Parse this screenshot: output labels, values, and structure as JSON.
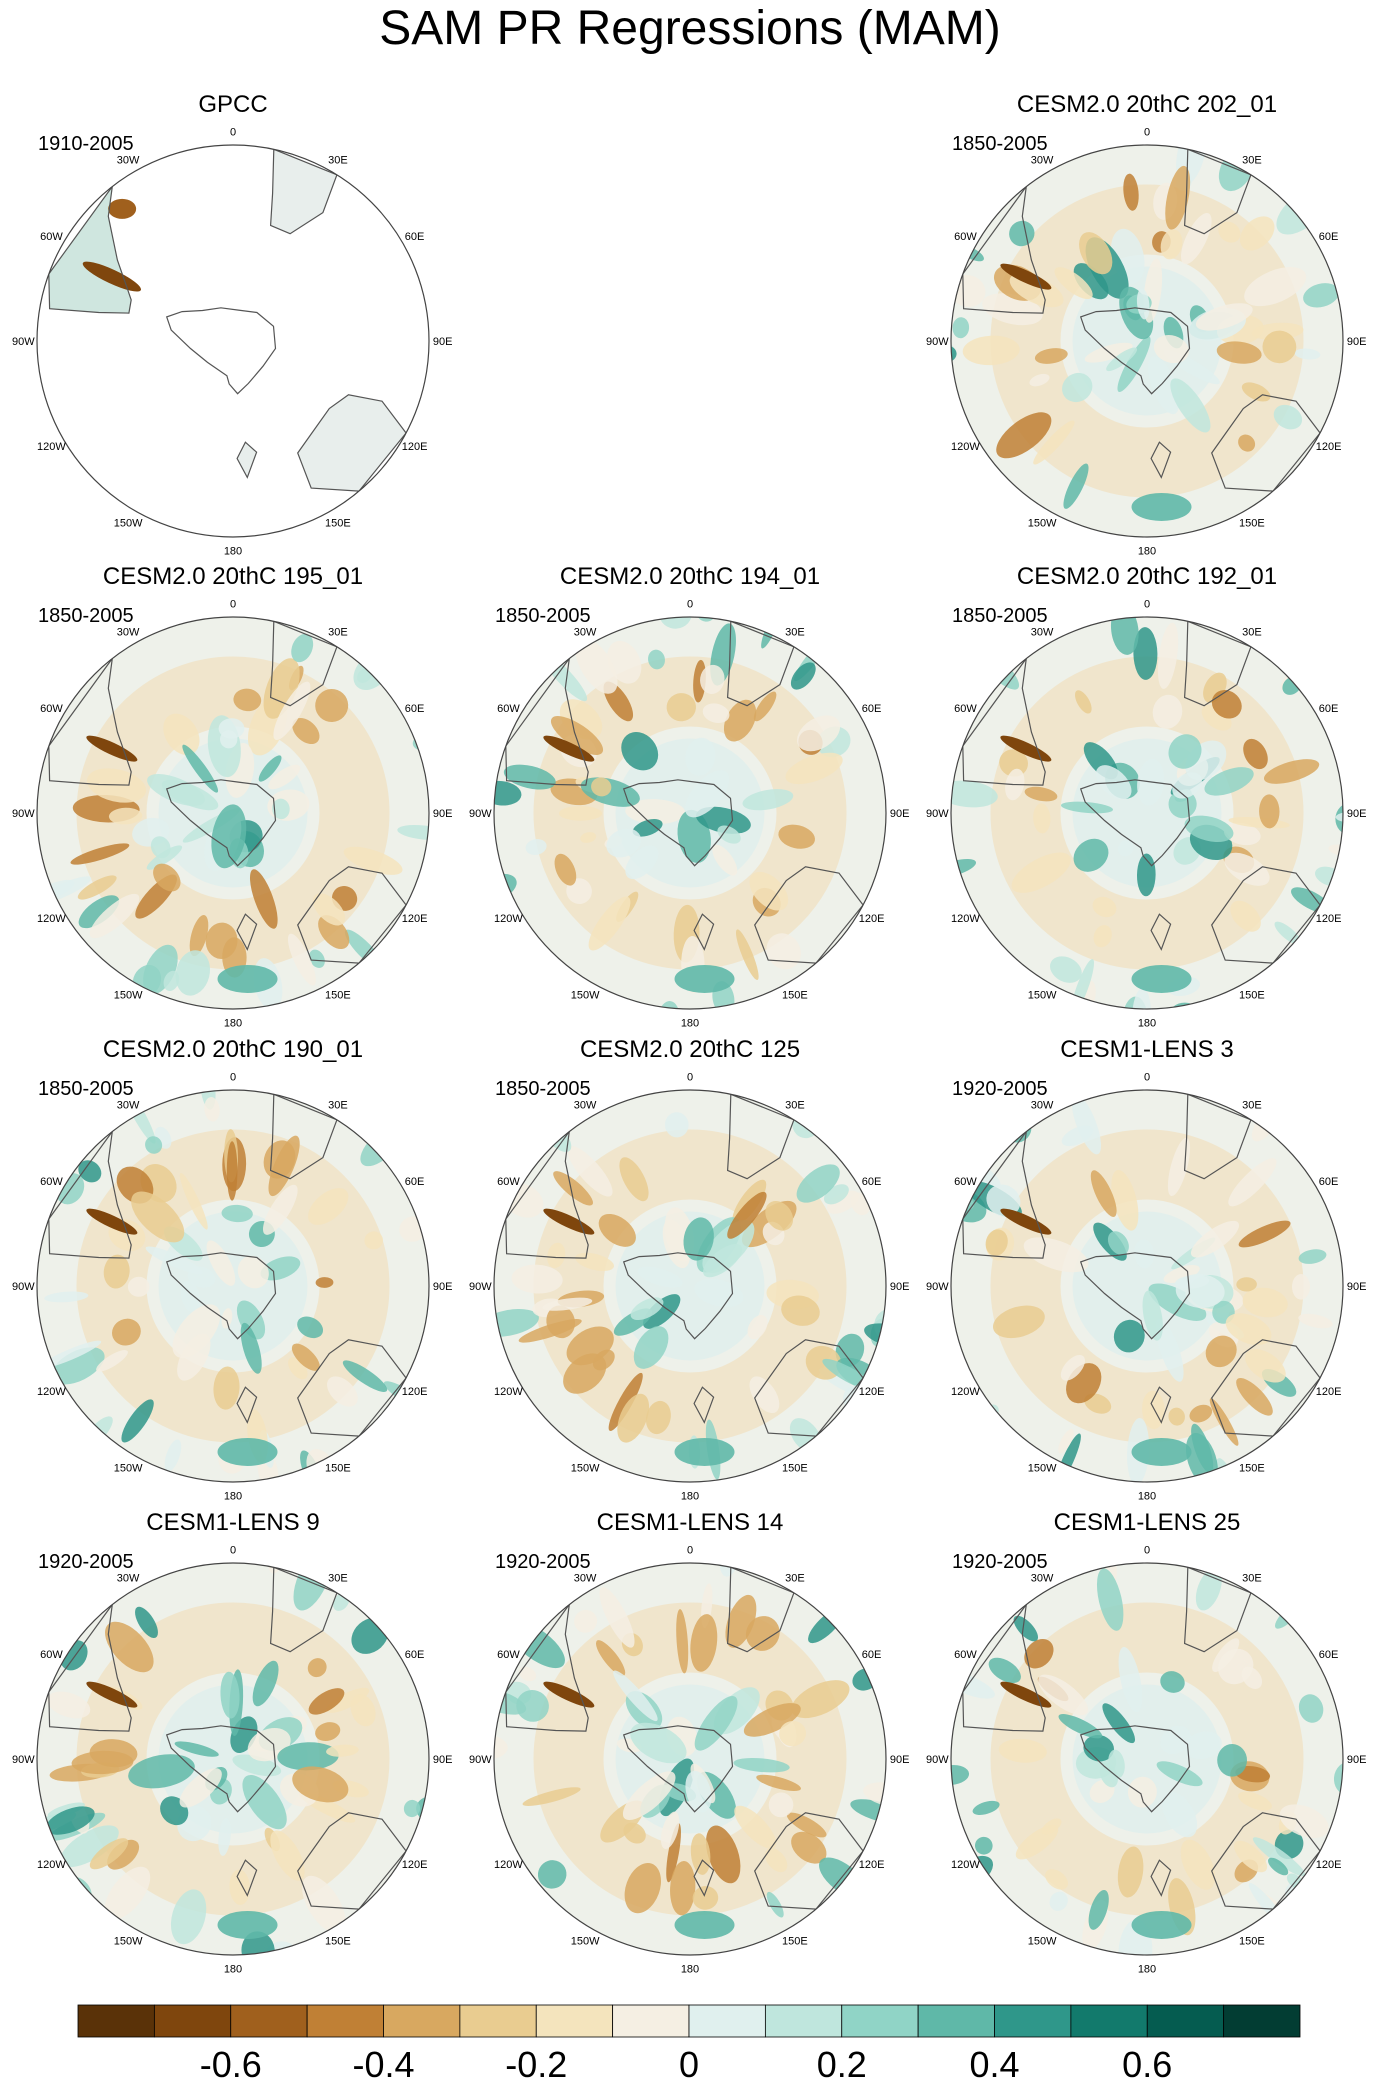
{
  "title": "SAM PR Regressions (MAM)",
  "longitude_labels": [
    "0",
    "30E",
    "60E",
    "90E",
    "120E",
    "150E",
    "180",
    "150W",
    "120W",
    "90W",
    "60W",
    "30W"
  ],
  "panels": [
    {
      "id": "gpcc",
      "row": 0,
      "col": 0,
      "title": "GPCC",
      "period": "1910-2005",
      "observed_land_only": true,
      "seed": 3
    },
    {
      "id": "cesm2-202",
      "row": 0,
      "col": 2,
      "title": "CESM2.0 20thC 202_01",
      "period": "1850-2005",
      "observed_land_only": false,
      "seed": 11
    },
    {
      "id": "cesm2-195",
      "row": 1,
      "col": 0,
      "title": "CESM2.0 20thC 195_01",
      "period": "1850-2005",
      "observed_land_only": false,
      "seed": 23
    },
    {
      "id": "cesm2-194",
      "row": 1,
      "col": 1,
      "title": "CESM2.0 20thC 194_01",
      "period": "1850-2005",
      "observed_land_only": false,
      "seed": 37
    },
    {
      "id": "cesm2-192",
      "row": 1,
      "col": 2,
      "title": "CESM2.0 20thC 192_01",
      "period": "1850-2005",
      "observed_land_only": false,
      "seed": 41
    },
    {
      "id": "cesm2-190",
      "row": 2,
      "col": 0,
      "title": "CESM2.0 20thC 190_01",
      "period": "1850-2005",
      "observed_land_only": false,
      "seed": 53
    },
    {
      "id": "cesm2-125",
      "row": 2,
      "col": 1,
      "title": "CESM2.0 20thC 125",
      "period": "1850-2005",
      "observed_land_only": false,
      "seed": 67
    },
    {
      "id": "lens-3",
      "row": 2,
      "col": 2,
      "title": "CESM1-LENS 3",
      "period": "1920-2005",
      "observed_land_only": false,
      "seed": 71
    },
    {
      "id": "lens-9",
      "row": 3,
      "col": 0,
      "title": "CESM1-LENS 9",
      "period": "1920-2005",
      "observed_land_only": false,
      "seed": 83
    },
    {
      "id": "lens-14",
      "row": 3,
      "col": 1,
      "title": "CESM1-LENS 14",
      "period": "1920-2005",
      "observed_land_only": false,
      "seed": 97
    },
    {
      "id": "lens-25",
      "row": 3,
      "col": 2,
      "title": "CESM1-LENS 25",
      "period": "1920-2005",
      "observed_land_only": false,
      "seed": 101
    }
  ],
  "colorbar": {
    "colors": [
      "#5a3208",
      "#7f460d",
      "#a0601d",
      "#c08035",
      "#d8a860",
      "#e9cc90",
      "#f4e4bd",
      "#f5efe3",
      "#e0f0ee",
      "#bfe6dd",
      "#90d4c6",
      "#5fb8a8",
      "#2f978a",
      "#127a6c",
      "#055c50",
      "#023d33"
    ],
    "tick_labels": [
      "-0.6",
      "-0.4",
      "-0.2",
      "0",
      "0.2",
      "0.4",
      "0.6"
    ],
    "tick_values": [
      -0.6,
      -0.4,
      -0.2,
      0,
      0.2,
      0.4,
      0.6
    ],
    "range": [
      -0.8,
      0.8
    ]
  }
}
